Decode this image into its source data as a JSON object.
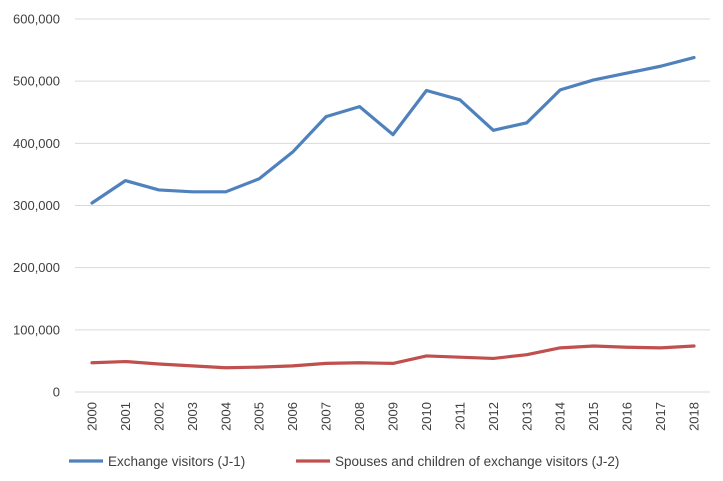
{
  "chart_data": {
    "type": "line",
    "title": "",
    "xlabel": "",
    "ylabel": "",
    "x": [
      "2000",
      "2001",
      "2002",
      "2003",
      "2004",
      "2005",
      "2006",
      "2007",
      "2008",
      "2009",
      "2010",
      "2011",
      "2012",
      "2013",
      "2014",
      "2015",
      "2016",
      "2017",
      "2018"
    ],
    "ylim": [
      0,
      600000
    ],
    "yticks": [
      0,
      100000,
      200000,
      300000,
      400000,
      500000,
      600000
    ],
    "ytick_labels": [
      "0",
      "100,000",
      "200,000",
      "300,000",
      "400,000",
      "500,000",
      "600,000"
    ],
    "grid": true,
    "legend_position": "bottom",
    "series": [
      {
        "name": "Exchange visitors (J-1)",
        "color": "#4f81bd",
        "values": [
          304000,
          340000,
          325000,
          322000,
          322000,
          343000,
          386000,
          443000,
          459000,
          414000,
          485000,
          470000,
          421000,
          433000,
          486000,
          502000,
          513000,
          524000,
          538000
        ]
      },
      {
        "name": "Spouses and children of exchange visitors (J-2)",
        "color": "#c0504d",
        "values": [
          47000,
          49000,
          45000,
          42000,
          39000,
          40000,
          42000,
          46000,
          47000,
          46000,
          58000,
          56000,
          54000,
          60000,
          71000,
          74000,
          72000,
          71000,
          74000
        ]
      }
    ]
  }
}
